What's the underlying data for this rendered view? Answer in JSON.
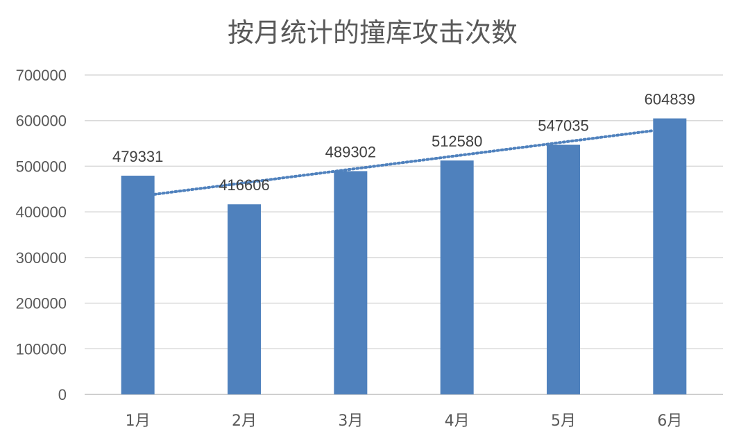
{
  "chart_data": {
    "type": "bar",
    "title": "按月统计的撞库攻击次数",
    "xlabel": "",
    "ylabel": "",
    "categories": [
      "1月",
      "2月",
      "3月",
      "4月",
      "5月",
      "6月"
    ],
    "series": [
      {
        "values": [
          479331,
          416606,
          489302,
          512580,
          547035,
          604839
        ],
        "color": "#4f81bd",
        "data_labels": true
      }
    ],
    "trendline": {
      "type": "linear",
      "style": "dotted",
      "color": "#4f81bd"
    },
    "ylim": [
      0,
      700000
    ],
    "yticks": [
      0,
      100000,
      200000,
      300000,
      400000,
      500000,
      600000,
      700000
    ],
    "grid": true,
    "legend": "none"
  }
}
